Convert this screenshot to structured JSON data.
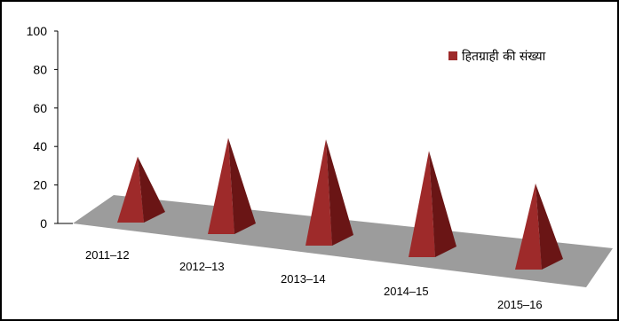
{
  "chart_data": {
    "type": "bar",
    "style": "3d-pyramid",
    "categories": [
      "2011–12",
      "2012–13",
      "2013–14",
      "2014–15",
      "2015–16"
    ],
    "series": [
      {
        "name": "हितग्राही की संख्या",
        "values": [
          30,
          45,
          50,
          50,
          40
        ]
      }
    ],
    "ylim": [
      0,
      100
    ],
    "yticks": [
      0,
      20,
      40,
      60,
      80,
      100
    ],
    "legend_position": "top-right",
    "grid": false,
    "colors": {
      "pyramid_front": "#9e2a2a",
      "pyramid_side": "#6a1515",
      "floor": "#9c9c9c",
      "frame": "#000000"
    }
  }
}
